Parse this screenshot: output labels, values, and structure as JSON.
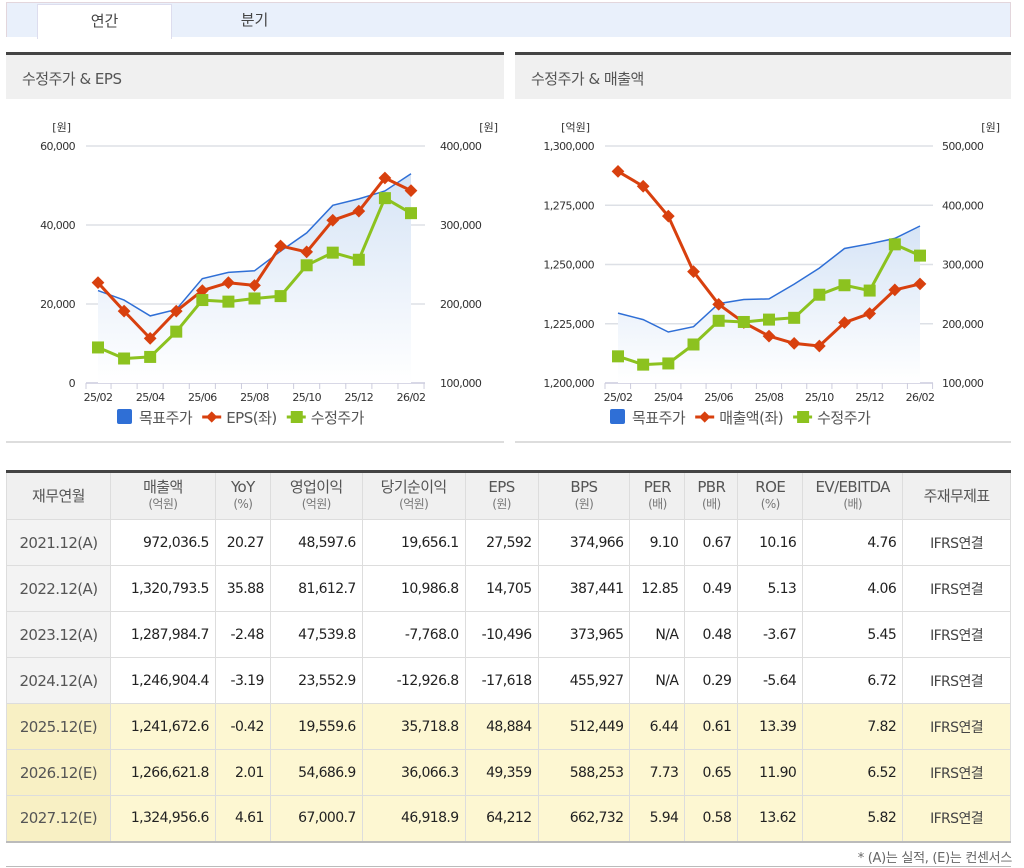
{
  "tabs": [
    {
      "label": "연간",
      "active": true
    },
    {
      "label": "분기",
      "active": false
    }
  ],
  "charts": {
    "left_title": "수정주가 & EPS",
    "right_title": "수정주가 & 매출액"
  },
  "chart_data": [
    {
      "type": "line",
      "title": "수정주가 & EPS",
      "x": [
        "25/02",
        "25/03",
        "25/04",
        "25/05",
        "25/06",
        "25/07",
        "25/08",
        "25/09",
        "25/10",
        "25/11",
        "25/12",
        "26/01",
        "26/02"
      ],
      "xticks": [
        "25/02",
        "25/04",
        "25/06",
        "25/08",
        "25/10",
        "25/12",
        "26/02"
      ],
      "yleft": {
        "unit": "[원]",
        "range": [
          0,
          60000
        ],
        "ticks": [
          "0",
          "20,000",
          "40,000",
          "60,000"
        ]
      },
      "yright": {
        "unit": "[원]",
        "range": [
          100000,
          400000
        ],
        "ticks": [
          "100,000",
          "200,000",
          "300,000",
          "400,000"
        ]
      },
      "series": [
        {
          "name": "목표주가",
          "axis": "right",
          "style": "area",
          "color": "#2f6fd6",
          "values": [
            217000,
            205000,
            185000,
            193000,
            232000,
            240000,
            242000,
            267000,
            290000,
            325000,
            333000,
            343000,
            365000
          ]
        },
        {
          "name": "EPS(좌)",
          "axis": "left",
          "style": "line-diamond",
          "color": "#d8400e",
          "values": [
            25400,
            18200,
            11300,
            18200,
            23400,
            25400,
            24700,
            34700,
            33200,
            41200,
            43500,
            51900,
            48700
          ]
        },
        {
          "name": "수정주가",
          "axis": "right",
          "style": "line-square",
          "color": "#8cc21f",
          "values": [
            145000,
            131000,
            133000,
            165000,
            205000,
            203000,
            207000,
            210000,
            249000,
            265000,
            256000,
            334000,
            315000
          ]
        }
      ],
      "legend": "bottom",
      "grid": true
    },
    {
      "type": "line",
      "title": "수정주가 & 매출액",
      "x": [
        "25/02",
        "25/03",
        "25/04",
        "25/05",
        "25/06",
        "25/07",
        "25/08",
        "25/09",
        "25/10",
        "25/11",
        "25/12",
        "26/01",
        "26/02"
      ],
      "xticks": [
        "25/02",
        "25/04",
        "25/06",
        "25/08",
        "25/10",
        "25/12",
        "26/02"
      ],
      "yleft": {
        "unit": "[억원]",
        "range": [
          1200000,
          1300000
        ],
        "ticks": [
          "1,200,000",
          "1,225,000",
          "1,250,000",
          "1,275,000",
          "1,300,000"
        ]
      },
      "yright": {
        "unit": "[원]",
        "range": [
          100000,
          500000
        ],
        "ticks": [
          "100,000",
          "200,000",
          "300,000",
          "400,000",
          "500,000"
        ]
      },
      "series": [
        {
          "name": "목표주가",
          "axis": "right",
          "style": "area",
          "color": "#2f6fd6",
          "values": [
            218000,
            207000,
            186000,
            195000,
            234000,
            241000,
            242000,
            267000,
            294000,
            327000,
            335000,
            344000,
            365000
          ]
        },
        {
          "name": "매출액(좌)",
          "axis": "left",
          "style": "line-diamond",
          "color": "#d8400e",
          "values": [
            1289300,
            1283000,
            1270400,
            1247000,
            1233200,
            1225500,
            1219800,
            1216700,
            1215600,
            1225500,
            1229300,
            1239300,
            1241800
          ]
        },
        {
          "name": "수정주가",
          "axis": "right",
          "style": "line-square",
          "color": "#8cc21f",
          "values": [
            145000,
            131000,
            133000,
            165000,
            205000,
            203000,
            207000,
            210000,
            249000,
            265000,
            256000,
            334000,
            315000
          ]
        }
      ],
      "legend": "bottom",
      "grid": true
    }
  ],
  "table": {
    "headers": [
      {
        "label": "재무연월",
        "unit": ""
      },
      {
        "label": "매출액",
        "unit": "(억원)"
      },
      {
        "label": "YoY",
        "unit": "(%)"
      },
      {
        "label": "영업이익",
        "unit": "(억원)"
      },
      {
        "label": "당기순이익",
        "unit": "(억원)"
      },
      {
        "label": "EPS",
        "unit": "(원)"
      },
      {
        "label": "BPS",
        "unit": "(원)"
      },
      {
        "label": "PER",
        "unit": "(배)"
      },
      {
        "label": "PBR",
        "unit": "(배)"
      },
      {
        "label": "ROE",
        "unit": "(%)"
      },
      {
        "label": "EV/EBITDA",
        "unit": "(배)"
      },
      {
        "label": "주재무제표",
        "unit": ""
      }
    ],
    "rows": [
      [
        "2021.12(A)",
        "972,036.5",
        "20.27",
        "48,597.6",
        "19,656.1",
        "27,592",
        "374,966",
        "9.10",
        "0.67",
        "10.16",
        "4.76",
        "IFRS연결"
      ],
      [
        "2022.12(A)",
        "1,320,793.5",
        "35.88",
        "81,612.7",
        "10,986.8",
        "14,705",
        "387,441",
        "12.85",
        "0.49",
        "5.13",
        "4.06",
        "IFRS연결"
      ],
      [
        "2023.12(A)",
        "1,287,984.7",
        "-2.48",
        "47,539.8",
        "-7,768.0",
        "-10,496",
        "373,965",
        "N/A",
        "0.48",
        "-3.67",
        "5.45",
        "IFRS연결"
      ],
      [
        "2024.12(A)",
        "1,246,904.4",
        "-3.19",
        "23,552.9",
        "-12,926.8",
        "-17,618",
        "455,927",
        "N/A",
        "0.29",
        "-5.64",
        "6.72",
        "IFRS연결"
      ],
      [
        "2025.12(E)",
        "1,241,672.6",
        "-0.42",
        "19,559.6",
        "35,718.8",
        "48,884",
        "512,449",
        "6.44",
        "0.61",
        "13.39",
        "7.82",
        "IFRS연결"
      ],
      [
        "2026.12(E)",
        "1,266,621.8",
        "2.01",
        "54,686.9",
        "36,066.3",
        "49,359",
        "588,253",
        "7.73",
        "0.65",
        "11.90",
        "6.52",
        "IFRS연결"
      ],
      [
        "2027.12(E)",
        "1,324,956.6",
        "4.61",
        "67,000.7",
        "46,918.9",
        "64,212",
        "662,732",
        "5.94",
        "0.58",
        "13.62",
        "5.82",
        "IFRS연결"
      ]
    ],
    "estimate_row_color": "#fdf7d2"
  },
  "footnote": "* (A)는 실적, (E)는 컨센서스"
}
